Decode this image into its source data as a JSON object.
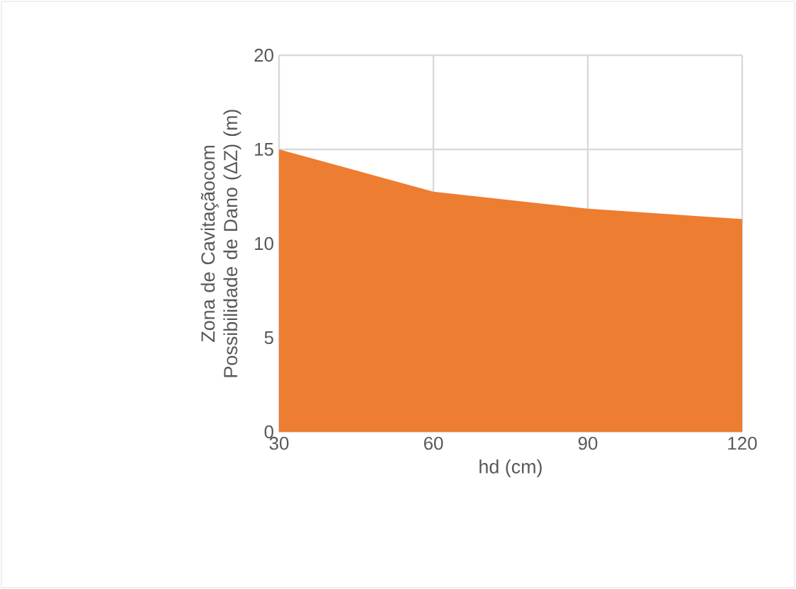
{
  "chart_data": {
    "type": "area",
    "xlabel": "hd (cm)",
    "ylabel": "Zona de Cavitaçãocom Possibilidade de Dano (ΔZ) (m)",
    "x": [
      30,
      60,
      90,
      120
    ],
    "series": [
      {
        "color": "#ed7d31",
        "values": [
          15,
          12.75,
          11.85,
          11.3
        ]
      }
    ],
    "xlim": [
      30,
      120
    ],
    "xticks": [
      30,
      60,
      90,
      120
    ],
    "ylim": [
      0,
      20
    ],
    "yticks": [
      0,
      5,
      10,
      15,
      20
    ],
    "grid": true
  }
}
